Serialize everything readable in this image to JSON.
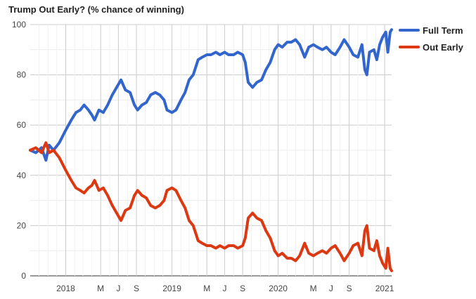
{
  "chart_data": {
    "type": "line",
    "title": "Trump Out Early? (% chance of winning)",
    "xlabel": "",
    "ylabel": "",
    "x_domain": [
      "2017-09-01",
      "2021-01-25"
    ],
    "ylim": [
      0,
      100
    ],
    "y_ticks": [
      0,
      20,
      40,
      60,
      80,
      100
    ],
    "x_ticks": [
      {
        "label": "2018",
        "date": "2018-01-01"
      },
      {
        "label": "M",
        "date": "2018-05-01"
      },
      {
        "label": "J",
        "date": "2018-07-01"
      },
      {
        "label": "S",
        "date": "2018-09-01"
      },
      {
        "label": "2019",
        "date": "2019-01-01"
      },
      {
        "label": "M",
        "date": "2019-05-01"
      },
      {
        "label": "J",
        "date": "2019-07-01"
      },
      {
        "label": "S",
        "date": "2019-09-01"
      },
      {
        "label": "2020",
        "date": "2020-01-01"
      },
      {
        "label": "M",
        "date": "2020-05-01"
      },
      {
        "label": "J",
        "date": "2020-07-01"
      },
      {
        "label": "S",
        "date": "2020-09-01"
      },
      {
        "label": "2021",
        "date": "2021-01-01"
      }
    ],
    "grid": true,
    "legend_position": "right",
    "series": [
      {
        "name": "Full Term",
        "color": "#3366cc",
        "points": [
          [
            "2017-09-01",
            50
          ],
          [
            "2017-09-20",
            49
          ],
          [
            "2017-10-10",
            51
          ],
          [
            "2017-10-25",
            46
          ],
          [
            "2017-11-05",
            52
          ],
          [
            "2017-11-20",
            50
          ],
          [
            "2017-12-10",
            53
          ],
          [
            "2018-01-01",
            58
          ],
          [
            "2018-01-20",
            62
          ],
          [
            "2018-02-05",
            65
          ],
          [
            "2018-02-20",
            66
          ],
          [
            "2018-03-05",
            68
          ],
          [
            "2018-03-20",
            66
          ],
          [
            "2018-04-01",
            64
          ],
          [
            "2018-04-10",
            62
          ],
          [
            "2018-04-25",
            66
          ],
          [
            "2018-05-10",
            65
          ],
          [
            "2018-05-25",
            68
          ],
          [
            "2018-06-10",
            72
          ],
          [
            "2018-06-25",
            75
          ],
          [
            "2018-07-10",
            78
          ],
          [
            "2018-07-25",
            74
          ],
          [
            "2018-08-10",
            73
          ],
          [
            "2018-08-25",
            68
          ],
          [
            "2018-09-05",
            66
          ],
          [
            "2018-09-20",
            68
          ],
          [
            "2018-10-05",
            69
          ],
          [
            "2018-10-20",
            72
          ],
          [
            "2018-11-05",
            73
          ],
          [
            "2018-11-20",
            72
          ],
          [
            "2018-12-05",
            70
          ],
          [
            "2018-12-15",
            66
          ],
          [
            "2019-01-01",
            65
          ],
          [
            "2019-01-15",
            66
          ],
          [
            "2019-02-01",
            70
          ],
          [
            "2019-02-15",
            73
          ],
          [
            "2019-03-01",
            78
          ],
          [
            "2019-03-15",
            80
          ],
          [
            "2019-04-01",
            86
          ],
          [
            "2019-04-15",
            87
          ],
          [
            "2019-05-01",
            88
          ],
          [
            "2019-05-15",
            88
          ],
          [
            "2019-06-01",
            89
          ],
          [
            "2019-06-15",
            88
          ],
          [
            "2019-07-01",
            89
          ],
          [
            "2019-07-15",
            88
          ],
          [
            "2019-08-01",
            88
          ],
          [
            "2019-08-15",
            89
          ],
          [
            "2019-09-01",
            88
          ],
          [
            "2019-09-10",
            85
          ],
          [
            "2019-09-20",
            77
          ],
          [
            "2019-10-05",
            75
          ],
          [
            "2019-10-20",
            77
          ],
          [
            "2019-11-05",
            78
          ],
          [
            "2019-11-20",
            82
          ],
          [
            "2019-12-05",
            85
          ],
          [
            "2019-12-20",
            90
          ],
          [
            "2020-01-01",
            92
          ],
          [
            "2020-01-15",
            91
          ],
          [
            "2020-02-01",
            93
          ],
          [
            "2020-02-15",
            93
          ],
          [
            "2020-03-01",
            94
          ],
          [
            "2020-03-15",
            92
          ],
          [
            "2020-04-01",
            87
          ],
          [
            "2020-04-15",
            91
          ],
          [
            "2020-05-01",
            92
          ],
          [
            "2020-05-15",
            91
          ],
          [
            "2020-06-01",
            90
          ],
          [
            "2020-06-15",
            91
          ],
          [
            "2020-07-01",
            89
          ],
          [
            "2020-07-15",
            88
          ],
          [
            "2020-08-01",
            91
          ],
          [
            "2020-08-15",
            94
          ],
          [
            "2020-09-01",
            91
          ],
          [
            "2020-09-15",
            88
          ],
          [
            "2020-10-01",
            87
          ],
          [
            "2020-10-15",
            92
          ],
          [
            "2020-10-25",
            82
          ],
          [
            "2020-11-01",
            80
          ],
          [
            "2020-11-10",
            89
          ],
          [
            "2020-11-25",
            90
          ],
          [
            "2020-12-05",
            86
          ],
          [
            "2020-12-15",
            92
          ],
          [
            "2020-12-25",
            95
          ],
          [
            "2021-01-05",
            97
          ],
          [
            "2021-01-12",
            89
          ],
          [
            "2021-01-20",
            97
          ],
          [
            "2021-01-25",
            98
          ]
        ]
      },
      {
        "name": "Out Early",
        "color": "#dc3912",
        "points": [
          [
            "2017-09-01",
            50
          ],
          [
            "2017-09-20",
            51
          ],
          [
            "2017-10-10",
            49
          ],
          [
            "2017-10-25",
            53
          ],
          [
            "2017-11-05",
            49
          ],
          [
            "2017-11-20",
            50
          ],
          [
            "2017-12-10",
            47
          ],
          [
            "2018-01-01",
            42
          ],
          [
            "2018-01-20",
            38
          ],
          [
            "2018-02-05",
            35
          ],
          [
            "2018-02-20",
            34
          ],
          [
            "2018-03-05",
            33
          ],
          [
            "2018-03-20",
            35
          ],
          [
            "2018-04-01",
            36
          ],
          [
            "2018-04-10",
            38
          ],
          [
            "2018-04-25",
            34
          ],
          [
            "2018-05-10",
            35
          ],
          [
            "2018-05-25",
            32
          ],
          [
            "2018-06-10",
            28
          ],
          [
            "2018-06-25",
            25
          ],
          [
            "2018-07-10",
            22
          ],
          [
            "2018-07-25",
            26
          ],
          [
            "2018-08-10",
            27
          ],
          [
            "2018-08-25",
            32
          ],
          [
            "2018-09-05",
            34
          ],
          [
            "2018-09-20",
            32
          ],
          [
            "2018-10-05",
            31
          ],
          [
            "2018-10-20",
            28
          ],
          [
            "2018-11-05",
            27
          ],
          [
            "2018-11-20",
            28
          ],
          [
            "2018-12-05",
            30
          ],
          [
            "2018-12-15",
            34
          ],
          [
            "2019-01-01",
            35
          ],
          [
            "2019-01-15",
            34
          ],
          [
            "2019-02-01",
            30
          ],
          [
            "2019-02-15",
            27
          ],
          [
            "2019-03-01",
            22
          ],
          [
            "2019-03-15",
            20
          ],
          [
            "2019-04-01",
            14
          ],
          [
            "2019-04-15",
            13
          ],
          [
            "2019-05-01",
            12
          ],
          [
            "2019-05-15",
            12
          ],
          [
            "2019-06-01",
            11
          ],
          [
            "2019-06-15",
            12
          ],
          [
            "2019-07-01",
            11
          ],
          [
            "2019-07-15",
            12
          ],
          [
            "2019-08-01",
            12
          ],
          [
            "2019-08-15",
            11
          ],
          [
            "2019-09-01",
            12
          ],
          [
            "2019-09-10",
            15
          ],
          [
            "2019-09-20",
            23
          ],
          [
            "2019-10-05",
            25
          ],
          [
            "2019-10-20",
            23
          ],
          [
            "2019-11-05",
            22
          ],
          [
            "2019-11-20",
            18
          ],
          [
            "2019-12-05",
            15
          ],
          [
            "2019-12-20",
            10
          ],
          [
            "2020-01-01",
            8
          ],
          [
            "2020-01-15",
            9
          ],
          [
            "2020-02-01",
            7
          ],
          [
            "2020-02-15",
            7
          ],
          [
            "2020-03-01",
            6
          ],
          [
            "2020-03-15",
            8
          ],
          [
            "2020-04-01",
            13
          ],
          [
            "2020-04-15",
            9
          ],
          [
            "2020-05-01",
            8
          ],
          [
            "2020-05-15",
            9
          ],
          [
            "2020-06-01",
            10
          ],
          [
            "2020-06-15",
            9
          ],
          [
            "2020-07-01",
            11
          ],
          [
            "2020-07-15",
            12
          ],
          [
            "2020-08-01",
            9
          ],
          [
            "2020-08-15",
            6
          ],
          [
            "2020-09-01",
            9
          ],
          [
            "2020-09-15",
            12
          ],
          [
            "2020-10-01",
            13
          ],
          [
            "2020-10-15",
            8
          ],
          [
            "2020-10-25",
            18
          ],
          [
            "2020-11-01",
            20
          ],
          [
            "2020-11-10",
            11
          ],
          [
            "2020-11-25",
            10
          ],
          [
            "2020-12-05",
            14
          ],
          [
            "2020-12-15",
            8
          ],
          [
            "2020-12-25",
            5
          ],
          [
            "2021-01-05",
            3
          ],
          [
            "2021-01-12",
            11
          ],
          [
            "2021-01-20",
            3
          ],
          [
            "2021-01-25",
            2
          ]
        ]
      }
    ]
  }
}
